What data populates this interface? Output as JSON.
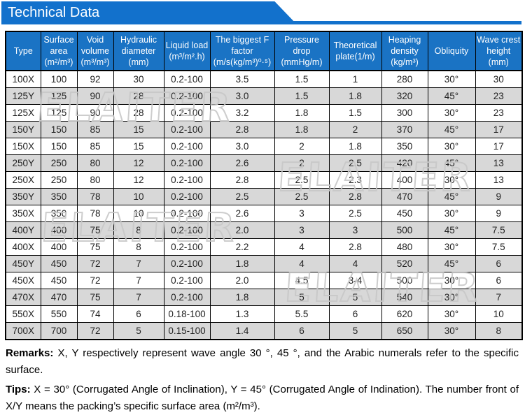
{
  "banner": {
    "title": "Technical Data"
  },
  "watermark": {
    "text": "ELAITER"
  },
  "table": {
    "headers": [
      "Type",
      "Surface area (m²/m³)",
      "Void volume (m³/m³)",
      "Hydraulic diameter (mm)",
      "Liquid load (m³/m².h)",
      "The biggest F factor (m/s(kg/m³)⁰·⁵)",
      "Pressure drop (mmHg/m)",
      "Theoretical plate(1/m)",
      "Heaping density (kg/m³)",
      "Obliquity",
      "Wave crest height (mm)"
    ],
    "rows": [
      [
        "100X",
        "100",
        "92",
        "30",
        "0.2-100",
        "3.5",
        "1.5",
        "1",
        "280",
        "30°",
        "30"
      ],
      [
        "125Y",
        "125",
        "90",
        "28",
        "0.2-100",
        "3.0",
        "1.5",
        "1.8",
        "320",
        "45°",
        "23"
      ],
      [
        "125X",
        "125",
        "90",
        "28",
        "0.2-100",
        "3.2",
        "1.8",
        "1.5",
        "300",
        "30°",
        "23"
      ],
      [
        "150Y",
        "150",
        "85",
        "15",
        "0.2-100",
        "2.8",
        "1.8",
        "2",
        "370",
        "45°",
        "17"
      ],
      [
        "150X",
        "150",
        "85",
        "15",
        "0.2-100",
        "3.0",
        "2",
        "1.8",
        "350",
        "30°",
        "17"
      ],
      [
        "250Y",
        "250",
        "80",
        "12",
        "0.2-100",
        "2.6",
        "2",
        "2.5",
        "420",
        "45°",
        "13"
      ],
      [
        "250X",
        "250",
        "80",
        "12",
        "0.2-100",
        "2.8",
        "2.5",
        "2.3",
        "400",
        "30°",
        "13"
      ],
      [
        "350Y",
        "350",
        "78",
        "10",
        "0.2-100",
        "2.5",
        "2.5",
        "2.8",
        "470",
        "45°",
        "9"
      ],
      [
        "350X",
        "350",
        "78",
        "10",
        "0.2-100",
        "2.6",
        "3",
        "2.5",
        "450",
        "30°",
        "9"
      ],
      [
        "400Y",
        "400",
        "75",
        "8",
        "0.2-100",
        "2.0",
        "3",
        "3",
        "500",
        "45°",
        "7.5"
      ],
      [
        "400X",
        "400",
        "75",
        "8",
        "0.2-100",
        "2.2",
        "4",
        "2.8",
        "480",
        "30°",
        "7.5"
      ],
      [
        "450Y",
        "450",
        "72",
        "7",
        "0.2-100",
        "1.8",
        "4",
        "4",
        "520",
        "45°",
        "6"
      ],
      [
        "450X",
        "450",
        "72",
        "7",
        "0.2-100",
        "2.0",
        "4.5",
        "3-4",
        "500",
        "30°",
        "6"
      ],
      [
        "470X",
        "470",
        "75",
        "7",
        "0.2-100",
        "1.8",
        "5",
        "5",
        "540",
        "30°",
        "7"
      ],
      [
        "550X",
        "550",
        "74",
        "6",
        "0.18-100",
        "1.3",
        "5.5",
        "6",
        "620",
        "30°",
        "10"
      ],
      [
        "700X",
        "700",
        "72",
        "5",
        "0.15-100",
        "1.4",
        "6",
        "5",
        "650",
        "30°",
        "8"
      ]
    ]
  },
  "notes": {
    "remarks_label": "Remarks:",
    "remarks_text": "X, Y respectively represent wave angle 30 °, 45 °, and the Arabic numerals refer to the specific surface.",
    "tips_label": "Tips:",
    "tips_text": "X = 30° (Corrugated Angle of Inclination), Y = 45° (Corrugated Angle of Indination). The number front of X/Y means the packing’s specific surface area (m²/m³)."
  },
  "colors": {
    "banner_blue": "#1271cc",
    "header_blue": "#1a73c4",
    "row_alt_gray": "#d8d8d8",
    "border_black": "#000000",
    "watermark_gray": "#c8c8c8"
  }
}
